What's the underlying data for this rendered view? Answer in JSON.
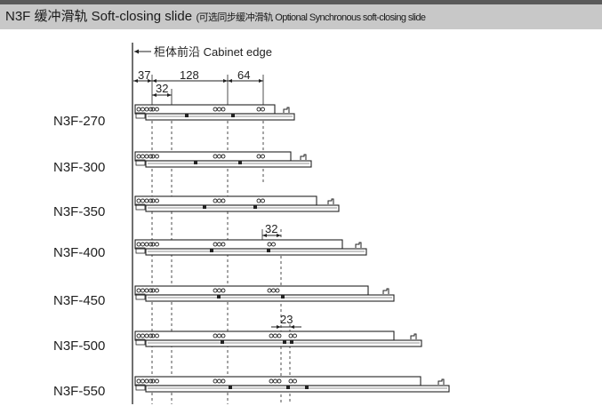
{
  "header": {
    "title": "N3F 缓冲滑轨 Soft-closing slide",
    "subtitle": "(可选同步缓冲滑轨 Optional Synchronous soft-closing slide"
  },
  "cabinet_edge_label": "柜体前沿 Cabinet edge",
  "dimensions": {
    "d37": "37",
    "d128": "128",
    "d64": "64",
    "d32_top": "32",
    "d32_mid": "32",
    "d23": "23"
  },
  "models": [
    {
      "name": "N3F-270",
      "length": 270
    },
    {
      "name": "N3F-300",
      "length": 300
    },
    {
      "name": "N3F-350",
      "length": 350
    },
    {
      "name": "N3F-400",
      "length": 400
    },
    {
      "name": "N3F-450",
      "length": 450
    },
    {
      "name": "N3F-500",
      "length": 500
    },
    {
      "name": "N3F-550",
      "length": 550
    }
  ],
  "colors": {
    "line": "#222222",
    "header_bg": "#c8c8c8",
    "top_bar": "#5a5a5a"
  }
}
